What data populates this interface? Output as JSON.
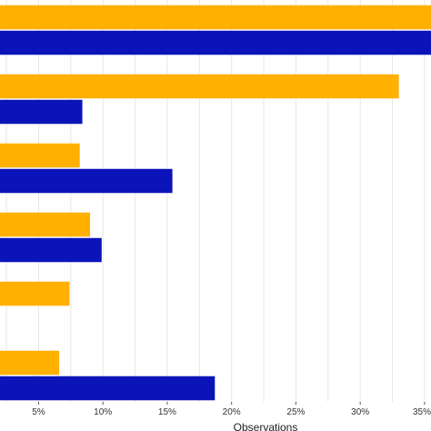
{
  "chart_data": {
    "type": "bar",
    "orientation": "horizontal",
    "xlabel": "Observations",
    "ylabel": "",
    "xlim": [
      0.02,
      0.355
    ],
    "x_ticks": [
      0.05,
      0.1,
      0.15,
      0.2,
      0.25,
      0.3,
      0.35
    ],
    "x_tick_labels": [
      "5%",
      "10%",
      "15%",
      "20%",
      "25%",
      "30%",
      "35%"
    ],
    "grid": true,
    "legend": "none",
    "category_count": 6,
    "series": [
      {
        "color": "#FFB000",
        "values": [
          0.365,
          0.33,
          0.082,
          0.09,
          0.074,
          0.066
        ]
      },
      {
        "color": "#0A14B8",
        "values": [
          0.365,
          0.084,
          0.154,
          0.099,
          null,
          0.187
        ]
      }
    ]
  }
}
